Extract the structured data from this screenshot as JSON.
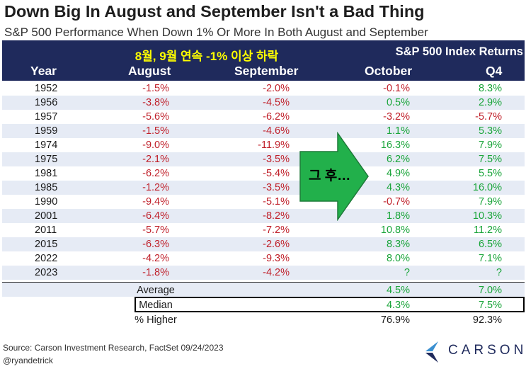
{
  "title": "Down Big In August and September Isn't a Bad Thing",
  "subtitle": "S&P 500 Performance When Down 1% Or More In Both August and September",
  "korean_note": "8월, 9월 연속 -1% 이상 하락",
  "group_header": "S&P 500 Index Returns",
  "arrow_label": "그 후…",
  "footer": {
    "source": "Source: Carson Investment Research, FactSet 09/24/2023",
    "handle": "@ryandetrick",
    "logo": "CARSON"
  },
  "colors": {
    "header_bg": "#1f2a5c",
    "shade_row": "#e6ebf5",
    "negative": "#c0202a",
    "positive": "#1aa53a",
    "arrow": "#22b04b",
    "korean_note": "#ffff00"
  },
  "chart_data": {
    "type": "table",
    "columns": [
      "Year",
      "August",
      "September",
      "October",
      "Q4"
    ],
    "rows": [
      {
        "year": "1952",
        "aug": "-1.5%",
        "sep": "-2.0%",
        "oct": "-0.1%",
        "q4": "8.3%"
      },
      {
        "year": "1956",
        "aug": "-3.8%",
        "sep": "-4.5%",
        "oct": "0.5%",
        "q4": "2.9%"
      },
      {
        "year": "1957",
        "aug": "-5.6%",
        "sep": "-6.2%",
        "oct": "-3.2%",
        "q4": "-5.7%"
      },
      {
        "year": "1959",
        "aug": "-1.5%",
        "sep": "-4.6%",
        "oct": "1.1%",
        "q4": "5.3%"
      },
      {
        "year": "1974",
        "aug": "-9.0%",
        "sep": "-11.9%",
        "oct": "16.3%",
        "q4": "7.9%"
      },
      {
        "year": "1975",
        "aug": "-2.1%",
        "sep": "-3.5%",
        "oct": "6.2%",
        "q4": "7.5%"
      },
      {
        "year": "1981",
        "aug": "-6.2%",
        "sep": "-5.4%",
        "oct": "4.9%",
        "q4": "5.5%"
      },
      {
        "year": "1985",
        "aug": "-1.2%",
        "sep": "-3.5%",
        "oct": "4.3%",
        "q4": "16.0%"
      },
      {
        "year": "1990",
        "aug": "-9.4%",
        "sep": "-5.1%",
        "oct": "-0.7%",
        "q4": "7.9%"
      },
      {
        "year": "2001",
        "aug": "-6.4%",
        "sep": "-8.2%",
        "oct": "1.8%",
        "q4": "10.3%"
      },
      {
        "year": "2011",
        "aug": "-5.7%",
        "sep": "-7.2%",
        "oct": "10.8%",
        "q4": "11.2%"
      },
      {
        "year": "2015",
        "aug": "-6.3%",
        "sep": "-2.6%",
        "oct": "8.3%",
        "q4": "6.5%"
      },
      {
        "year": "2022",
        "aug": "-4.2%",
        "sep": "-9.3%",
        "oct": "8.0%",
        "q4": "7.1%"
      },
      {
        "year": "2023",
        "aug": "-1.8%",
        "sep": "-4.2%",
        "oct": "?",
        "q4": "?"
      }
    ],
    "summary": [
      {
        "label": "Average",
        "oct": "4.5%",
        "q4": "7.0%"
      },
      {
        "label": "Median",
        "oct": "4.3%",
        "q4": "7.5%"
      },
      {
        "label": "% Higher",
        "oct": "76.9%",
        "q4": "92.3%"
      }
    ]
  }
}
